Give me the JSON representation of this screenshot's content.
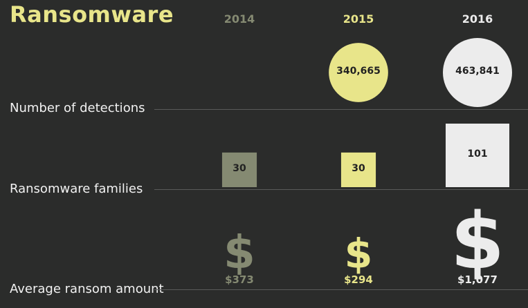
{
  "title": "Ransomware",
  "colors": {
    "background": "#2b2c2b",
    "title": "#e8e58a",
    "year_colors": [
      "#858a72",
      "#e8e58a",
      "#ececec"
    ],
    "label_text": "#222222",
    "row_label": "#f2f2f2"
  },
  "years": [
    "2014",
    "2015",
    "2016"
  ],
  "rows": [
    {
      "label": "Number of detections"
    },
    {
      "label": "Ransomware families"
    },
    {
      "label": "Average ransom amount"
    }
  ],
  "chart_data": {
    "type": "table",
    "title": "Ransomware",
    "categories": [
      "2014",
      "2015",
      "2016"
    ],
    "series": [
      {
        "name": "Number of detections",
        "values": [
          null,
          340665,
          463841
        ],
        "labels": [
          "",
          "340,665",
          "463,841"
        ]
      },
      {
        "name": "Ransomware families",
        "values": [
          30,
          30,
          101
        ],
        "labels": [
          "30",
          "30",
          "101"
        ]
      },
      {
        "name": "Average ransom amount",
        "values": [
          373,
          294,
          1077
        ],
        "labels": [
          "$373",
          "$294",
          "$1,077"
        ]
      }
    ]
  }
}
